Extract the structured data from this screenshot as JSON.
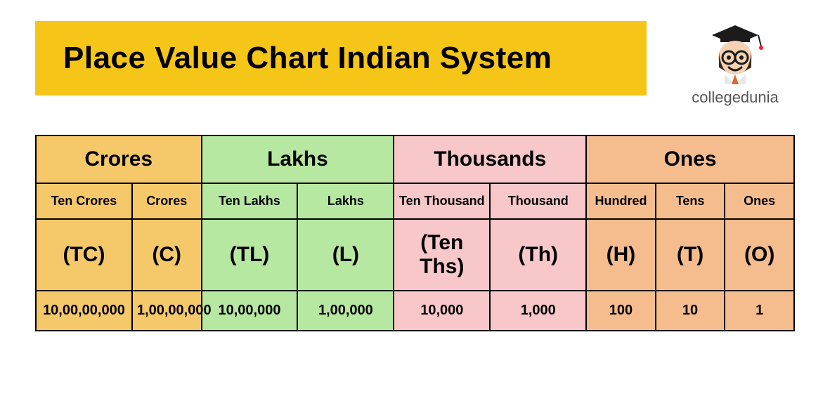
{
  "header": {
    "title": "Place Value Chart Indian System",
    "title_bg": "#f5c518",
    "title_color": "#000000",
    "brand_label": "collegedunia"
  },
  "table": {
    "border_color": "#000000",
    "periods": [
      {
        "label": "Crores",
        "bg": "#f5c96a",
        "span": 2
      },
      {
        "label": "Lakhs",
        "bg": "#b7e8a1",
        "span": 2
      },
      {
        "label": "Thousands",
        "bg": "#f7c7c9",
        "span": 2
      },
      {
        "label": "Ones",
        "bg": "#f5bd8e",
        "span": 3
      }
    ],
    "places": [
      {
        "name": "Ten Crores",
        "abbr": "(TC)",
        "value": "10,00,00,000",
        "bg": "#f5c96a",
        "w": "wide"
      },
      {
        "name": "Crores",
        "abbr": "(C)",
        "value": "1,00,00,000",
        "bg": "#f5c96a",
        "w": "narrow"
      },
      {
        "name": "Ten Lakhs",
        "abbr": "(TL)",
        "value": "10,00,000",
        "bg": "#b7e8a1",
        "w": "wide"
      },
      {
        "name": "Lakhs",
        "abbr": "(L)",
        "value": "1,00,000",
        "bg": "#b7e8a1",
        "w": "wide"
      },
      {
        "name": "Ten Thousand",
        "abbr": "(Ten Ths)",
        "value": "10,000",
        "bg": "#f7c7c9",
        "w": "wide"
      },
      {
        "name": "Thousand",
        "abbr": "(Th)",
        "value": "1,000",
        "bg": "#f7c7c9",
        "w": "wide"
      },
      {
        "name": "Hundred",
        "abbr": "(H)",
        "value": "100",
        "bg": "#f5bd8e",
        "w": "narrow"
      },
      {
        "name": "Tens",
        "abbr": "(T)",
        "value": "10",
        "bg": "#f5bd8e",
        "w": "narrow"
      },
      {
        "name": "Ones",
        "abbr": "(O)",
        "value": "1",
        "bg": "#f5bd8e",
        "w": "narrow"
      }
    ]
  },
  "style": {
    "title_fontsize": 44,
    "period_fontsize": 30,
    "place_fontsize": 18,
    "abbrev_fontsize": 30,
    "value_fontsize": 20
  }
}
